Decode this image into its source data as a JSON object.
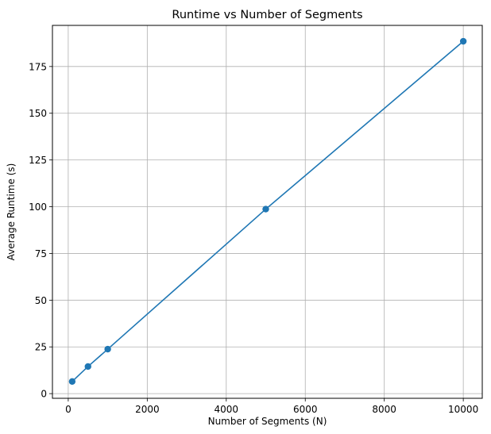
{
  "chart_data": {
    "type": "line",
    "title": "Runtime vs Number of Segments",
    "xlabel": "Number of Segments (N)",
    "ylabel": "Average Runtime (s)",
    "xlim": [
      -400,
      10480
    ],
    "ylim": [
      -2.5,
      197
    ],
    "xticks": [
      0,
      2000,
      4000,
      6000,
      8000,
      10000
    ],
    "yticks": [
      0,
      25,
      50,
      75,
      100,
      125,
      150,
      175
    ],
    "grid": true,
    "series": [
      {
        "color": "#1f77b4",
        "marker": "circle",
        "x": [
          100,
          500,
          1000,
          5000,
          10000
        ],
        "y": [
          6.5,
          14.5,
          23.8,
          98.7,
          188.5
        ]
      }
    ]
  }
}
